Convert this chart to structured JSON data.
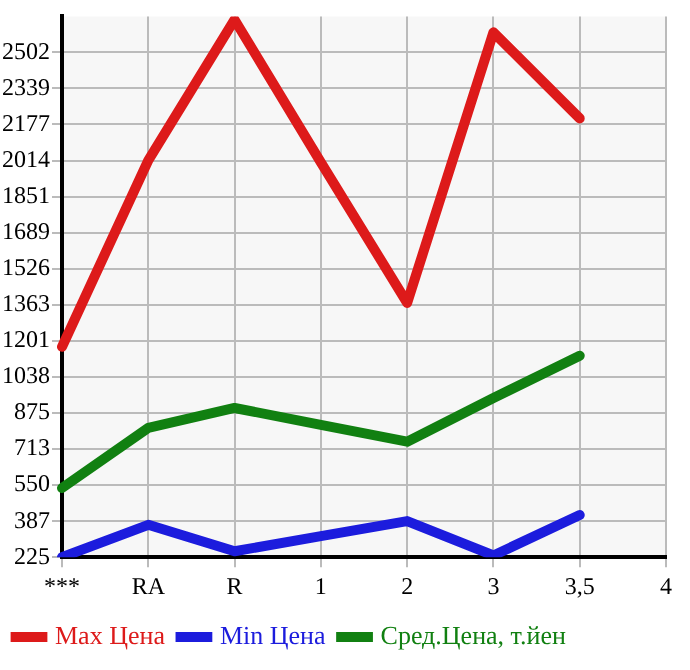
{
  "chart_data": {
    "type": "line",
    "categories": [
      "***",
      "RA",
      "R",
      "1",
      "2",
      "3",
      "3,5",
      "4"
    ],
    "series": [
      {
        "name": "Max Цена",
        "color": "#dd1a1a",
        "values": [
          1174,
          2015,
          2649,
          2006,
          1372,
          2592,
          2204,
          null
        ]
      },
      {
        "name": "Min Цена",
        "color": "#1c1cdd",
        "values": [
          225,
          371,
          252,
          320,
          388,
          233,
          415,
          null
        ]
      },
      {
        "name": "Сред.Цена, т.йен",
        "color": "#118011",
        "values": [
          537,
          808,
          898,
          822,
          746,
          943,
          1134,
          null
        ]
      }
    ],
    "ylim": [
      225,
      2664
    ],
    "yticks": [
      225,
      387,
      550,
      713,
      875,
      1038,
      1201,
      1363,
      1526,
      1689,
      1851,
      2014,
      2177,
      2339,
      2502
    ],
    "grid": true,
    "legend": "bottom",
    "marker": "none",
    "line_style": "solid"
  }
}
